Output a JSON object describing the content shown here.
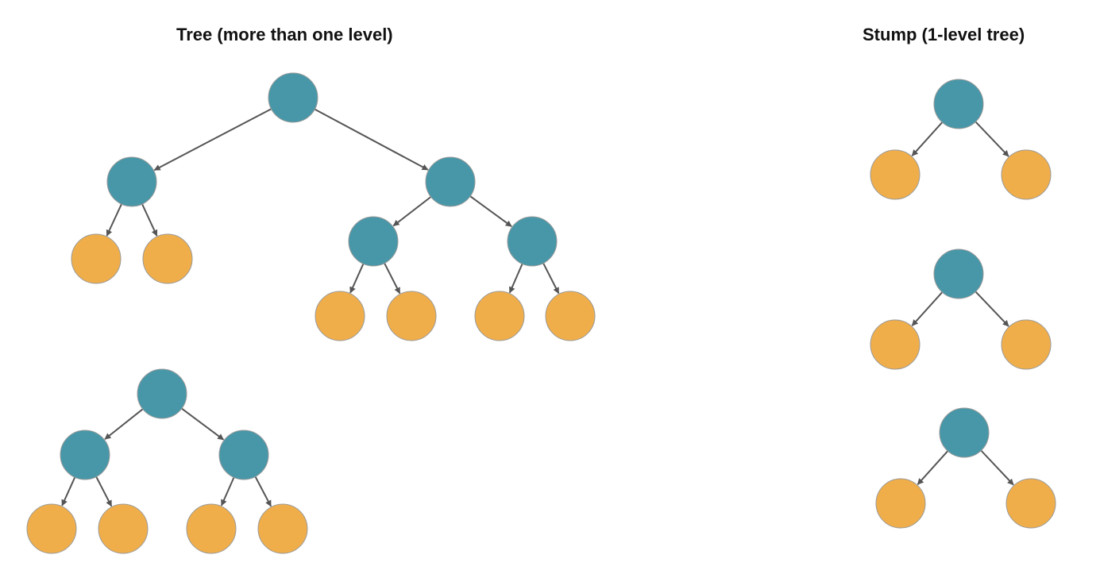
{
  "titles": {
    "tree": "Tree (more than one level)",
    "stump": "Stump (1-level tree)"
  },
  "colors": {
    "internal_node": "#4797a8",
    "leaf_node": "#f0ae4a",
    "node_stroke": "#9a9a9a",
    "edge": "#555555"
  },
  "panels": {
    "tree": {
      "examples": [
        {
          "levels": 3,
          "internal_nodes": 5,
          "leaf_nodes": 6
        },
        {
          "levels": 2,
          "internal_nodes": 3,
          "leaf_nodes": 4
        }
      ]
    },
    "stump": {
      "examples": [
        {
          "levels": 1,
          "internal_nodes": 1,
          "leaf_nodes": 2
        },
        {
          "levels": 1,
          "internal_nodes": 1,
          "leaf_nodes": 2
        },
        {
          "levels": 1,
          "internal_nodes": 1,
          "leaf_nodes": 2
        }
      ]
    }
  }
}
